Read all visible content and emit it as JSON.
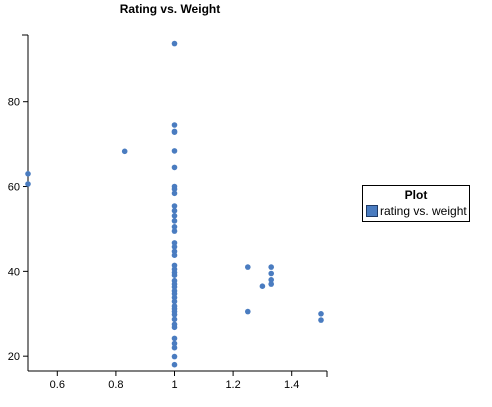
{
  "chart_data": {
    "type": "scatter",
    "title": "Rating vs. Weight",
    "xlabel": "",
    "ylabel": "",
    "xlim": [
      0.5,
      1.5
    ],
    "ylim": [
      17,
      97
    ],
    "xticks": [
      0.6,
      0.8,
      1,
      1.2,
      1.4
    ],
    "xtick_labels": [
      "0.6",
      "0.8",
      "1",
      "1.2",
      "1.4"
    ],
    "yticks": [
      20,
      40,
      60,
      80
    ],
    "ytick_labels": [
      "20",
      "40",
      "60",
      "80"
    ],
    "grid": false,
    "legend": {
      "title": "Plot",
      "placement": "right",
      "entries": [
        "rating vs. weight"
      ]
    },
    "series": [
      {
        "name": "rating vs. weight",
        "color": "#4a7cc0",
        "points": [
          [
            0.5,
            63.0
          ],
          [
            0.5,
            60.6
          ],
          [
            0.83,
            68.3
          ],
          [
            1,
            93.7
          ],
          [
            1,
            74.5
          ],
          [
            1,
            73.0
          ],
          [
            1,
            72.8
          ],
          [
            1,
            68.4
          ],
          [
            1,
            64.5
          ],
          [
            1,
            60.0
          ],
          [
            1,
            59.4
          ],
          [
            1,
            58.4
          ],
          [
            1,
            55.4
          ],
          [
            1,
            54.3
          ],
          [
            1,
            53.1
          ],
          [
            1,
            51.9
          ],
          [
            1,
            50.5
          ],
          [
            1,
            49.5
          ],
          [
            1,
            46.7
          ],
          [
            1,
            45.8
          ],
          [
            1,
            44.7
          ],
          [
            1,
            43.8
          ],
          [
            1,
            41.4
          ],
          [
            1,
            40.5
          ],
          [
            1,
            39.7
          ],
          [
            1,
            39.1
          ],
          [
            1,
            37.8
          ],
          [
            1,
            37.0
          ],
          [
            1,
            36.3
          ],
          [
            1,
            35.4
          ],
          [
            1,
            34.7
          ],
          [
            1,
            33.8
          ],
          [
            1,
            32.9
          ],
          [
            1,
            31.8
          ],
          [
            1,
            31.2
          ],
          [
            1,
            30.5
          ],
          [
            1,
            29.8
          ],
          [
            1,
            28.7
          ],
          [
            1,
            27.5
          ],
          [
            1,
            26.8
          ],
          [
            1,
            24.2
          ],
          [
            1,
            23.0
          ],
          [
            1,
            22.0
          ],
          [
            1,
            19.9
          ],
          [
            1,
            18.0
          ],
          [
            1.25,
            41.0
          ],
          [
            1.25,
            30.5
          ],
          [
            1.3,
            36.5
          ],
          [
            1.33,
            41.0
          ],
          [
            1.33,
            39.5
          ],
          [
            1.33,
            38.0
          ],
          [
            1.33,
            37.0
          ],
          [
            1.5,
            30.0
          ],
          [
            1.5,
            28.5
          ]
        ]
      }
    ]
  }
}
